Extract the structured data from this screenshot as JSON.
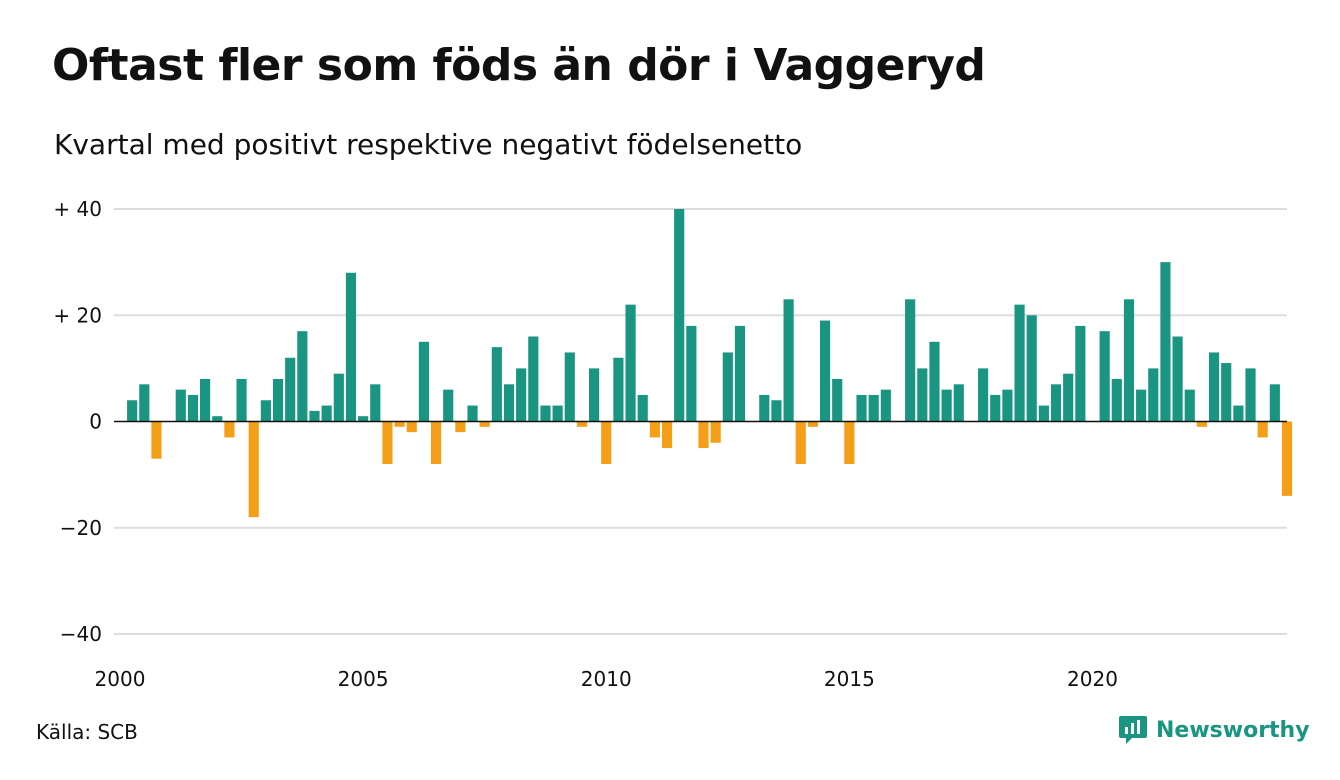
{
  "title": "Oftast fler som föds än dör i Vaggeryd",
  "subtitle": "Kvartal med positivt respektive negativt födelsenetto",
  "source": "Källa: SCB",
  "brand": {
    "name": "Newsworthy",
    "icon": "chart-speech-bubble-icon"
  },
  "colors": {
    "positive": "#1a9582",
    "negative": "#f59f19",
    "grid": "#dddddd",
    "axis": "#111111"
  },
  "chart_data": {
    "type": "bar",
    "x_start": 2000.25,
    "x_step": 0.25,
    "xlim": [
      2000,
      2024
    ],
    "ylim": [
      -40,
      40
    ],
    "y_ticks": [
      40,
      20,
      0,
      -20,
      -40
    ],
    "y_tick_labels": [
      "+ 40",
      "+ 20",
      "0",
      "−20",
      "−40"
    ],
    "x_ticks": [
      2000,
      2005,
      2010,
      2015,
      2020
    ],
    "x_tick_labels": [
      "2000",
      "2005",
      "2010",
      "2015",
      "2020"
    ],
    "grid": true,
    "values": [
      4,
      7,
      -7,
      0,
      6,
      5,
      8,
      1,
      -3,
      8,
      -18,
      4,
      8,
      12,
      17,
      2,
      3,
      9,
      28,
      1,
      7,
      -8,
      -1,
      -2,
      15,
      -8,
      6,
      -2,
      3,
      -1,
      14,
      7,
      10,
      16,
      3,
      3,
      13,
      -1,
      10,
      -8,
      12,
      22,
      5,
      -3,
      -5,
      40,
      18,
      -5,
      -4,
      13,
      18,
      0,
      5,
      4,
      23,
      -8,
      -1,
      19,
      8,
      -8,
      5,
      5,
      6,
      0,
      23,
      10,
      15,
      6,
      7,
      0,
      10,
      5,
      6,
      22,
      20,
      3,
      7,
      9,
      18,
      0,
      17,
      8,
      23,
      6,
      10,
      30,
      16,
      6,
      -1,
      13,
      11,
      3,
      10,
      -3,
      7,
      -14
    ]
  }
}
